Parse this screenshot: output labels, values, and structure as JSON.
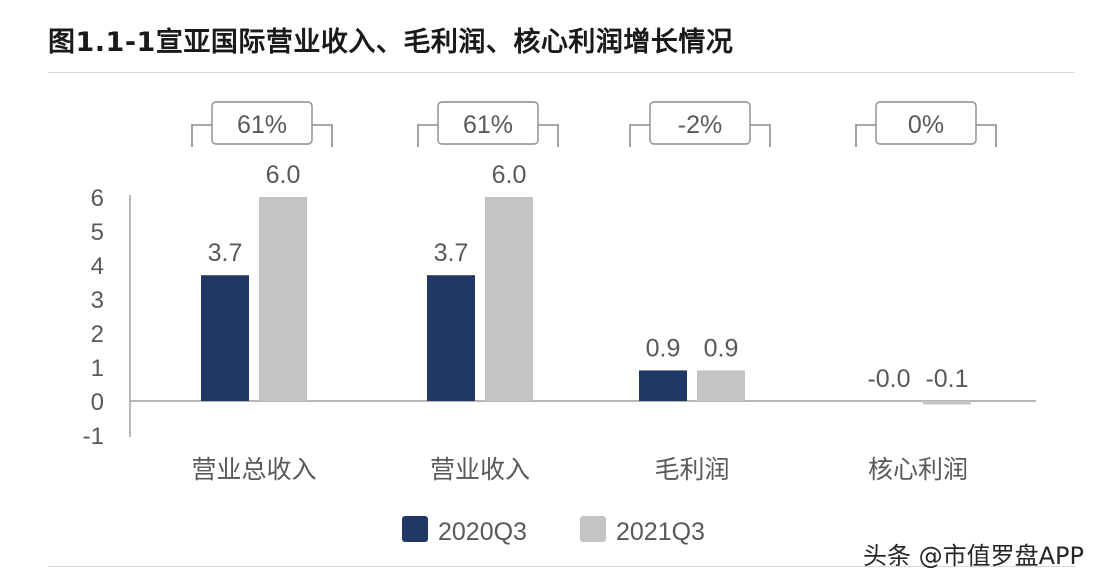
{
  "title": "图1.1-1宣亚国际营业收入、毛利润、核心利润增长情况",
  "watermark": "头条 @市值罗盘APP",
  "colors": {
    "s2020": "#213866",
    "s2021": "#c4c4c4",
    "axis": "#8c8c8c",
    "text": "#595959"
  },
  "chart_data": {
    "type": "bar",
    "title": "图1.1-1宣亚国际营业收入、毛利润、核心利润增长情况",
    "categories": [
      "营业总收入",
      "营业收入",
      "毛利润",
      "核心利润"
    ],
    "series": [
      {
        "name": "2020Q3",
        "values": [
          3.7,
          3.7,
          0.9,
          -0.0
        ]
      },
      {
        "name": "2021Q3",
        "values": [
          6.0,
          6.0,
          0.9,
          -0.1
        ]
      }
    ],
    "data_labels": [
      [
        "3.7",
        "6.0"
      ],
      [
        "3.7",
        "6.0"
      ],
      [
        "0.9",
        "0.9"
      ],
      [
        "-0.0",
        "-0.1"
      ]
    ],
    "growth_labels": [
      "61%",
      "61%",
      "-2%",
      "0%"
    ],
    "yticks": [
      "-1",
      "0",
      "1",
      "2",
      "3",
      "4",
      "5",
      "6"
    ],
    "ylim": [
      -1,
      6
    ],
    "legend": [
      "2020Q3",
      "2021Q3"
    ],
    "legend_position": "bottom",
    "grid": false
  }
}
